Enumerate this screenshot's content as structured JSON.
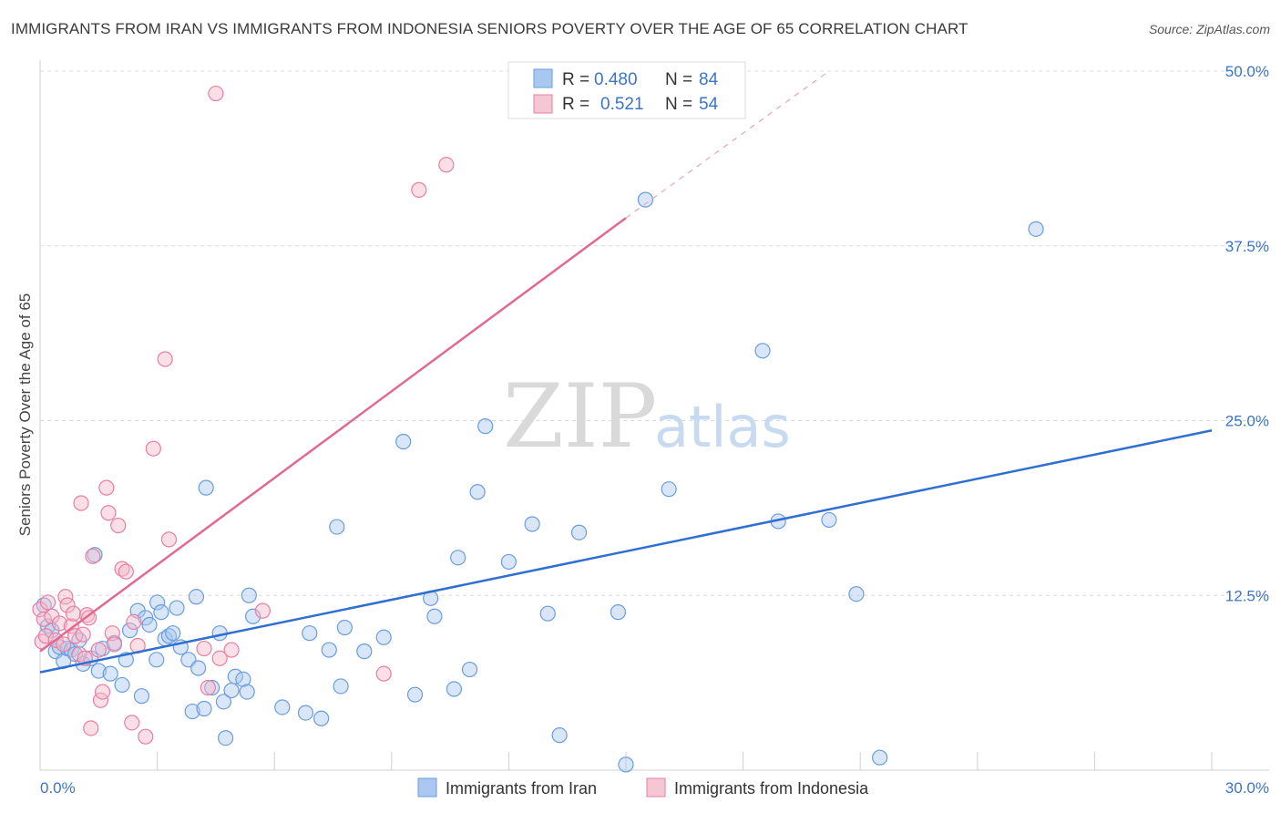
{
  "chart_data": {
    "type": "scatter",
    "title": "IMMIGRANTS FROM IRAN VS IMMIGRANTS FROM INDONESIA SENIORS POVERTY OVER THE AGE OF 65 CORRELATION CHART",
    "source": "Source: ZipAtlas.com",
    "xlabel": "",
    "ylabel": "Seniors Poverty Over the Age of 65",
    "xlim": [
      0,
      30
    ],
    "ylim": [
      0,
      50
    ],
    "x_tick_labels": [
      "0.0%",
      "30.0%"
    ],
    "y_ticks": [
      12.5,
      25.0,
      37.5,
      50.0
    ],
    "y_tick_labels": [
      "12.5%",
      "25.0%",
      "37.5%",
      "50.0%"
    ],
    "watermark": {
      "zip": "ZIP",
      "atlas": "atlas"
    },
    "legend": [
      {
        "r_label": "R =",
        "r_value": "0.480",
        "n_label": "N =",
        "n_value": "84"
      },
      {
        "r_label": "R =",
        "r_value": "0.521",
        "n_label": "N =",
        "n_value": "54"
      }
    ],
    "series": [
      {
        "name": "Immigrants from Iran",
        "color": "#6a9de0",
        "fill": "#a9c7ef",
        "trend": {
          "x0": 0,
          "y0": 7.0,
          "x1": 30,
          "y1": 24.3
        },
        "points": [
          [
            0.1,
            11.8
          ],
          [
            0.2,
            10.3
          ],
          [
            0.3,
            10.0
          ],
          [
            0.4,
            8.5
          ],
          [
            0.5,
            8.8
          ],
          [
            0.6,
            7.8
          ],
          [
            0.7,
            8.7
          ],
          [
            0.8,
            8.6
          ],
          [
            0.9,
            8.3
          ],
          [
            1.0,
            9.3
          ],
          [
            1.1,
            7.6
          ],
          [
            1.3,
            8.0
          ],
          [
            1.4,
            15.4
          ],
          [
            1.5,
            7.1
          ],
          [
            1.6,
            8.7
          ],
          [
            1.8,
            6.9
          ],
          [
            1.9,
            9.1
          ],
          [
            2.1,
            6.1
          ],
          [
            2.2,
            7.9
          ],
          [
            2.3,
            10.0
          ],
          [
            2.5,
            11.4
          ],
          [
            2.6,
            5.3
          ],
          [
            2.7,
            10.9
          ],
          [
            2.8,
            10.4
          ],
          [
            2.98,
            7.9
          ],
          [
            3.0,
            12.0
          ],
          [
            3.1,
            11.3
          ],
          [
            3.2,
            9.4
          ],
          [
            3.3,
            9.6
          ],
          [
            3.4,
            9.8
          ],
          [
            3.5,
            11.6
          ],
          [
            3.6,
            8.8
          ],
          [
            3.8,
            7.9
          ],
          [
            3.9,
            4.2
          ],
          [
            4.0,
            12.4
          ],
          [
            4.05,
            7.3
          ],
          [
            4.2,
            4.4
          ],
          [
            4.25,
            20.2
          ],
          [
            4.4,
            5.9
          ],
          [
            4.6,
            9.8
          ],
          [
            4.7,
            4.9
          ],
          [
            4.75,
            2.3
          ],
          [
            4.9,
            5.7
          ],
          [
            5.0,
            6.7
          ],
          [
            5.2,
            6.5
          ],
          [
            5.3,
            5.6
          ],
          [
            5.35,
            12.5
          ],
          [
            5.45,
            11.0
          ],
          [
            6.2,
            4.5
          ],
          [
            6.8,
            4.1
          ],
          [
            6.9,
            9.8
          ],
          [
            7.2,
            3.7
          ],
          [
            7.4,
            8.6
          ],
          [
            7.6,
            17.4
          ],
          [
            7.7,
            6.0
          ],
          [
            7.8,
            10.2
          ],
          [
            8.3,
            8.5
          ],
          [
            8.8,
            9.5
          ],
          [
            9.3,
            23.5
          ],
          [
            9.6,
            5.4
          ],
          [
            10.0,
            12.3
          ],
          [
            10.1,
            11.0
          ],
          [
            10.6,
            5.8
          ],
          [
            10.7,
            15.2
          ],
          [
            11.0,
            7.2
          ],
          [
            11.2,
            19.9
          ],
          [
            11.4,
            24.6
          ],
          [
            12.0,
            14.9
          ],
          [
            12.6,
            17.6
          ],
          [
            13.0,
            11.2
          ],
          [
            13.3,
            2.5
          ],
          [
            13.8,
            17.0
          ],
          [
            14.8,
            11.3
          ],
          [
            15.0,
            0.4
          ],
          [
            15.5,
            40.8
          ],
          [
            16.1,
            20.1
          ],
          [
            18.5,
            30.0
          ],
          [
            18.9,
            17.8
          ],
          [
            20.2,
            17.9
          ],
          [
            20.9,
            12.6
          ],
          [
            21.5,
            0.9
          ],
          [
            25.5,
            38.7
          ]
        ]
      },
      {
        "name": "Immigrants from Indonesia",
        "color": "#e87fa2",
        "fill": "#f5b8ca",
        "trend": {
          "x0": 0,
          "y0": 8.5,
          "x1": 15,
          "y1": 39.5
        },
        "trend_dashed": {
          "x0": 15,
          "y0": 39.5,
          "x1": 20.2,
          "y1": 50.0
        },
        "points": [
          [
            0.0,
            11.5
          ],
          [
            0.05,
            9.2
          ],
          [
            0.1,
            10.8
          ],
          [
            0.15,
            9.6
          ],
          [
            0.2,
            12.0
          ],
          [
            0.3,
            11.0
          ],
          [
            0.4,
            9.3
          ],
          [
            0.5,
            10.5
          ],
          [
            0.6,
            9.0
          ],
          [
            0.65,
            12.4
          ],
          [
            0.7,
            11.8
          ],
          [
            0.8,
            10.3
          ],
          [
            0.85,
            11.2
          ],
          [
            0.9,
            9.6
          ],
          [
            1.0,
            8.3
          ],
          [
            1.05,
            19.1
          ],
          [
            1.1,
            9.7
          ],
          [
            1.15,
            8.0
          ],
          [
            1.2,
            11.1
          ],
          [
            1.25,
            10.9
          ],
          [
            1.3,
            3.0
          ],
          [
            1.35,
            15.3
          ],
          [
            1.5,
            8.6
          ],
          [
            1.55,
            5.0
          ],
          [
            1.6,
            5.6
          ],
          [
            1.7,
            20.2
          ],
          [
            1.75,
            18.4
          ],
          [
            1.85,
            9.8
          ],
          [
            1.9,
            9.0
          ],
          [
            2.0,
            17.5
          ],
          [
            2.1,
            14.4
          ],
          [
            2.2,
            14.2
          ],
          [
            2.35,
            3.4
          ],
          [
            2.4,
            10.6
          ],
          [
            2.5,
            8.9
          ],
          [
            2.7,
            2.4
          ],
          [
            2.9,
            23.0
          ],
          [
            3.2,
            29.4
          ],
          [
            3.3,
            16.5
          ],
          [
            4.2,
            8.7
          ],
          [
            4.3,
            5.9
          ],
          [
            4.5,
            48.4
          ],
          [
            4.6,
            8.0
          ],
          [
            4.9,
            8.6
          ],
          [
            5.7,
            11.4
          ],
          [
            8.8,
            6.9
          ],
          [
            9.7,
            41.5
          ],
          [
            10.4,
            43.3
          ]
        ]
      }
    ]
  }
}
